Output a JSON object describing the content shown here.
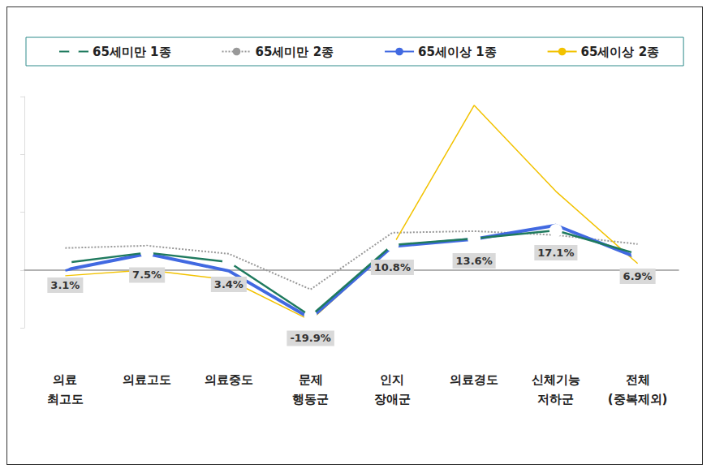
{
  "chart_data": {
    "type": "line",
    "categories": [
      "의료\n최고도",
      "의료고도",
      "의료중도",
      "문제\n행동군",
      "인지\n장애군",
      "의료경도",
      "신체기능\n저하군",
      "전체\n(중복제외)"
    ],
    "series": [
      {
        "name": "65세미만 1종",
        "color": "#1f7a5e",
        "marker": "circle",
        "line_style": "solid",
        "values": [
          3.1,
          7.5,
          3.4,
          -19.9,
          10.8,
          13.6,
          17.1,
          6.9
        ],
        "data_labels": true,
        "value_labels": [
          "3.1%",
          "7.5%",
          "3.4%",
          "-19.9%",
          "10.8%",
          "13.6%",
          "17.1%",
          "6.9%"
        ]
      },
      {
        "name": "65세미만 2종",
        "color": "#999999",
        "marker": "none",
        "line_style": "dotted",
        "values": [
          9.5,
          10.5,
          7.0,
          -8.4,
          16.1,
          16.8,
          15.1,
          11.2
        ]
      },
      {
        "name": "65세이상 1종",
        "color": "#4169e1",
        "marker": "none",
        "line_style": "solid",
        "values": [
          0.0,
          7.0,
          -0.4,
          -21.0,
          10.2,
          13.3,
          19.3,
          5.3
        ]
      },
      {
        "name": "65세이상 2종",
        "color": "#f2c200",
        "marker": "none",
        "line_style": "solid",
        "values": [
          -2.5,
          0.0,
          -4.2,
          -21.8,
          10.2,
          71.2,
          34.0,
          2.8
        ]
      }
    ],
    "ylim": [
      -25,
      75
    ],
    "yticks": [
      -25,
      0,
      25,
      50,
      75
    ],
    "grid": false,
    "tick_labels": false,
    "legend": "top"
  }
}
